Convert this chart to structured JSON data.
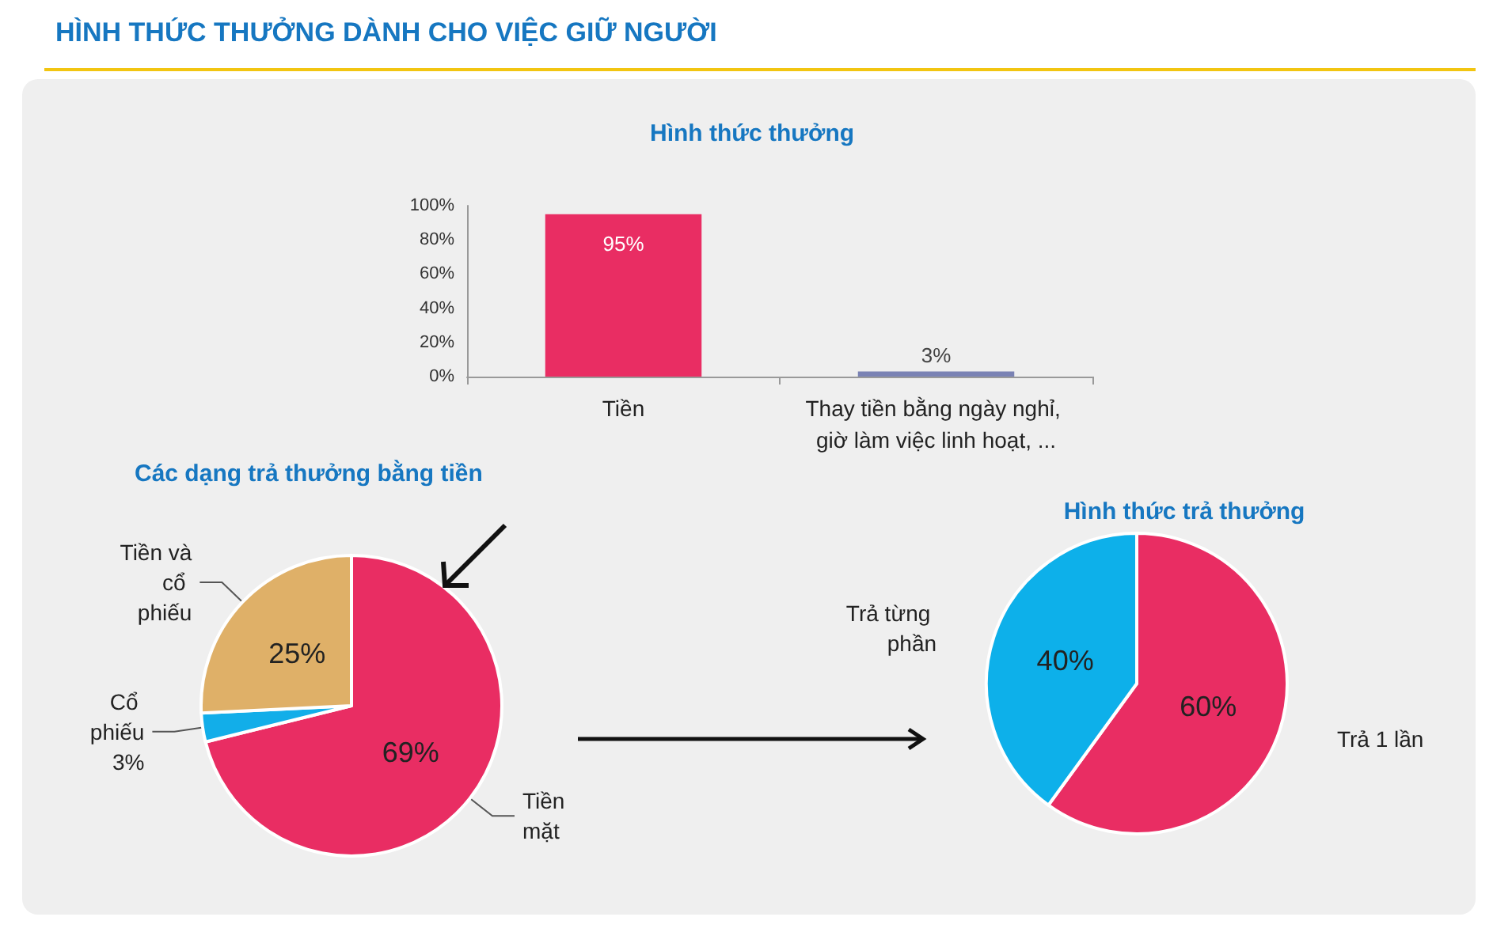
{
  "chart_data": [
    {
      "type": "bar",
      "title": "Hình thức thưởng",
      "annotations": [
        "HÌNH THỨC THƯỞNG DÀNH CHO VIỆC GIỮ NGƯỜI"
      ],
      "categories": [
        "Tiền",
        "Thay tiền bằng ngày nghỉ, giờ làm việc linh hoạt, ..."
      ],
      "values": [
        95,
        3
      ],
      "colors": [
        "#e92d63",
        "#7a82b4"
      ],
      "value_labels": [
        "95%",
        "3%"
      ],
      "ylim": [
        0,
        100
      ],
      "yticks": [
        {
          "value": 0,
          "label": "0%"
        },
        {
          "value": 20,
          "label": "20%"
        },
        {
          "value": 40,
          "label": "40%"
        },
        {
          "value": 60,
          "label": "60%"
        },
        {
          "value": 80,
          "label": "80%"
        },
        {
          "value": 100,
          "label": "100%"
        }
      ],
      "grid": false,
      "legend": false
    },
    {
      "type": "pie",
      "title": "Các dạng trả thưởng bằng tiền",
      "categories": [
        "Tiền mặt",
        "Cổ phiếu",
        "Tiền và cổ phiếu"
      ],
      "values": [
        69,
        3,
        25
      ],
      "colors": [
        "#e92d63",
        "#12aee9",
        "#dfb068"
      ],
      "value_labels": [
        "69%",
        "3%",
        "25%"
      ],
      "legend": false
    },
    {
      "type": "pie",
      "title": "Hình thức trả thưởng",
      "categories": [
        "Trả 1 lần",
        "Trả từng phần"
      ],
      "values": [
        60,
        40
      ],
      "colors": [
        "#e92d63",
        "#0db0ea"
      ],
      "value_labels": [
        "60%",
        "40%"
      ],
      "legend": false
    }
  ]
}
